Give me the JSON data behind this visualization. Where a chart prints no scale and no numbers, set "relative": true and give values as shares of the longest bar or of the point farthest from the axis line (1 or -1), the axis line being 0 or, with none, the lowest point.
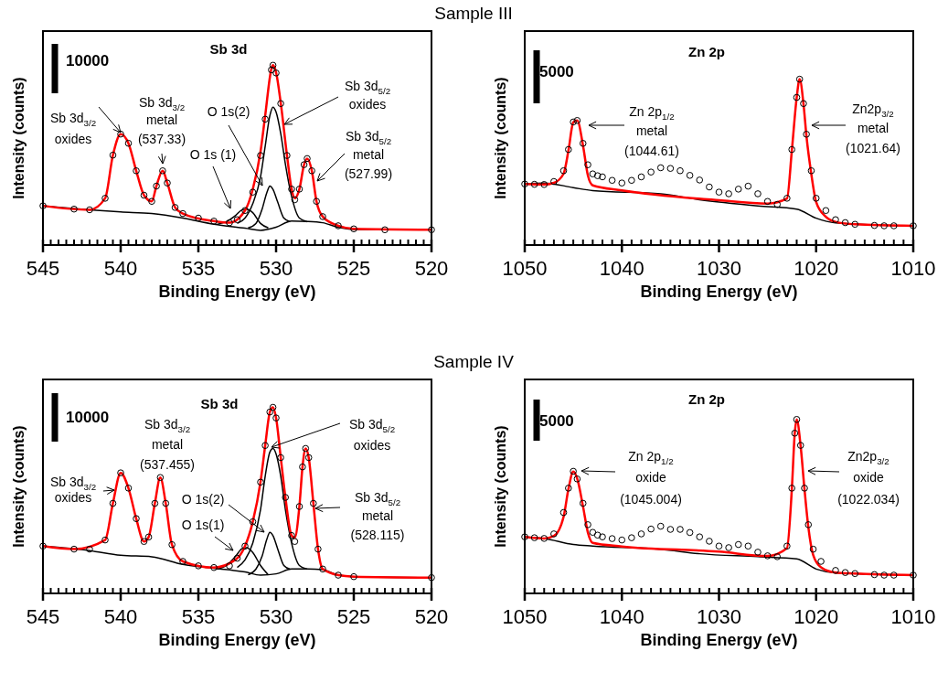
{
  "chart_data": [
    {
      "type": "scatter",
      "title": "Sb 3d",
      "subtitle": "Sample III",
      "xlabel": "Binding Energy (eV)",
      "ylabel": "Intensity (counts)",
      "relative": true,
      "xlim": [
        545,
        520
      ],
      "xticks": [
        545,
        540,
        535,
        530,
        525,
        520
      ],
      "annotations": [
        "10000",
        "Sb 3d$_{3/2}$\noxides",
        "Sb 3d$_{3/2}$\nmetal\n(537.33)",
        "O 1s (1)",
        "O 1s(2)",
        "Sb 3d$_{5/2}$\noxides",
        "Sb 3d$_{5/2}$\nmetal\n(527.99)"
      ],
      "series": [
        {
          "type": "line",
          "color": "#000000",
          "x": [
            545,
            542,
            540,
            538,
            536,
            534,
            532,
            531,
            530,
            529,
            528,
            527,
            526,
            525,
            520
          ],
          "values": [
            0.218,
            0.196,
            0.184,
            0.175,
            0.15,
            0.116,
            0.094,
            0.082,
            0.099,
            0.133,
            0.131,
            0.124,
            0.099,
            0.087,
            0.085
          ]
        },
        {
          "type": "line",
          "color": "#000000",
          "x": [
            533.8,
            533.2,
            532.6,
            532.2,
            531.9,
            531.5,
            531,
            530.5
          ],
          "values": [
            0.115,
            0.13,
            0.165,
            0.195,
            0.2,
            0.18,
            0.12,
            0.095
          ]
        },
        {
          "type": "line",
          "color": "#000000",
          "x": [
            531.8,
            531.3,
            530.9,
            530.6,
            530.4,
            530.2,
            529.9,
            529.5,
            529.1
          ],
          "values": [
            0.095,
            0.12,
            0.2,
            0.29,
            0.328,
            0.31,
            0.24,
            0.15,
            0.13
          ]
        },
        {
          "type": "line",
          "color": "#000000",
          "x": [
            532.5,
            532,
            531.5,
            531,
            530.7,
            530.4,
            530.2,
            530,
            529.7,
            529.4,
            529,
            528.5,
            528
          ],
          "values": [
            0.12,
            0.15,
            0.23,
            0.38,
            0.55,
            0.72,
            0.767,
            0.74,
            0.62,
            0.45,
            0.27,
            0.15,
            0.13
          ]
        },
        {
          "type": "line",
          "color": "#ff0000",
          "x": [
            545,
            542,
            541,
            540.5,
            540,
            539.5,
            539,
            538.5,
            538,
            537.7,
            537.3,
            537,
            536.5,
            536,
            534,
            533,
            532,
            531.5,
            531,
            530.7,
            530.3,
            530.2,
            530,
            529.7,
            529.3,
            529,
            528.8,
            528.5,
            528.2,
            528,
            527.7,
            527.4,
            527,
            526,
            525,
            520
          ],
          "values": [
            0.218,
            0.196,
            0.26,
            0.5,
            0.617,
            0.566,
            0.413,
            0.277,
            0.243,
            0.328,
            0.413,
            0.345,
            0.209,
            0.175,
            0.133,
            0.124,
            0.192,
            0.31,
            0.52,
            0.72,
            0.98,
            1.0,
            0.96,
            0.79,
            0.5,
            0.311,
            0.26,
            0.311,
            0.447,
            0.481,
            0.413,
            0.243,
            0.158,
            0.107,
            0.09,
            0.085
          ]
        },
        {
          "marker": "circle",
          "color": "#000000",
          "x": [
            545,
            543,
            542,
            541,
            540.5,
            540,
            539.5,
            539,
            538.5,
            538,
            537.7,
            537.3,
            537,
            536.5,
            536,
            535,
            534,
            533,
            532.5,
            532,
            531.5,
            531,
            530.7,
            530.3,
            530.2,
            530,
            529.7,
            529.3,
            529,
            528.8,
            528.5,
            528.2,
            528,
            527.7,
            527.4,
            527,
            526,
            525,
            523,
            520
          ],
          "values": [
            0.218,
            0.2,
            0.196,
            0.26,
            0.5,
            0.617,
            0.566,
            0.413,
            0.277,
            0.243,
            0.328,
            0.413,
            0.345,
            0.209,
            0.175,
            0.15,
            0.133,
            0.124,
            0.141,
            0.192,
            0.294,
            0.498,
            0.7,
            0.974,
            1.0,
            0.957,
            0.787,
            0.498,
            0.311,
            0.252,
            0.311,
            0.447,
            0.481,
            0.413,
            0.243,
            0.158,
            0.107,
            0.09,
            0.085,
            0.085
          ]
        }
      ]
    },
    {
      "type": "scatter",
      "title": "Zn 2p",
      "xlabel": "Binding Energy (eV)",
      "ylabel": "Intensity (counts)",
      "relative": true,
      "xlim": [
        1050,
        1010
      ],
      "xticks": [
        1050,
        1040,
        1030,
        1020,
        1010
      ],
      "annotations": [
        "5000",
        "Zn 2p$_{1/2}$\nmetal\n(1044.61)",
        "Zn2p$_{3/2}$\nmetal\n(1021.64)"
      ],
      "series": [
        {
          "type": "line",
          "color": "#000000",
          "x": [
            1050,
            1048,
            1045,
            1043,
            1036,
            1032,
            1026,
            1022,
            1020,
            1018,
            1010
          ],
          "values": [
            0.368,
            0.374,
            0.346,
            0.328,
            0.309,
            0.273,
            0.236,
            0.217,
            0.162,
            0.134,
            0.116
          ]
        },
        {
          "type": "line",
          "color": "#ff0000",
          "x": [
            1050,
            1048,
            1047,
            1046,
            1045.5,
            1045,
            1044.6,
            1044,
            1043.5,
            1043,
            1040,
            1030,
            1025,
            1023,
            1022.5,
            1022,
            1021.7,
            1021.3,
            1021,
            1020.5,
            1020,
            1019,
            1018,
            1016,
            1010
          ],
          "values": [
            0.368,
            0.365,
            0.375,
            0.43,
            0.57,
            0.74,
            0.751,
            0.6,
            0.42,
            0.36,
            0.33,
            0.27,
            0.25,
            0.28,
            0.57,
            0.89,
            1.0,
            0.85,
            0.66,
            0.43,
            0.26,
            0.17,
            0.14,
            0.125,
            0.116
          ]
        },
        {
          "marker": "circle",
          "color": "#000000",
          "x": [
            1050,
            1049,
            1048,
            1047,
            1046,
            1045.5,
            1045,
            1044.6,
            1044,
            1043.5,
            1043,
            1042.5,
            1042,
            1041,
            1040,
            1039,
            1038,
            1037,
            1036,
            1035,
            1034,
            1033,
            1032,
            1031,
            1030,
            1029,
            1028,
            1027,
            1026,
            1025,
            1024,
            1023,
            1022.5,
            1022,
            1021.7,
            1021.3,
            1021,
            1020.5,
            1020,
            1019,
            1018,
            1017,
            1016,
            1014,
            1013,
            1012,
            1010
          ],
          "values": [
            0.368,
            0.366,
            0.365,
            0.383,
            0.448,
            0.576,
            0.742,
            0.751,
            0.613,
            0.484,
            0.429,
            0.418,
            0.411,
            0.39,
            0.374,
            0.39,
            0.411,
            0.44,
            0.466,
            0.462,
            0.448,
            0.42,
            0.392,
            0.35,
            0.319,
            0.309,
            0.337,
            0.355,
            0.309,
            0.263,
            0.245,
            0.282,
            0.576,
            0.89,
            1.0,
            0.853,
            0.668,
            0.448,
            0.282,
            0.208,
            0.153,
            0.135,
            0.125,
            0.118,
            0.116,
            0.116,
            0.116
          ]
        }
      ]
    },
    {
      "type": "scatter",
      "title": "Sb 3d",
      "subtitle": "Sample IV",
      "xlabel": "Binding Energy (eV)",
      "ylabel": "Intensity (counts)",
      "relative": true,
      "xlim": [
        545,
        520
      ],
      "xticks": [
        545,
        540,
        535,
        530,
        525,
        520
      ],
      "annotations": [
        "10000",
        "Sb 3d$_{3/2}$\noxides",
        "Sb 3d$_{3/2}$\nmetal\n(537.455)",
        "O 1s(2)",
        "O 1s(1)",
        "Sb 3d$_{5/2}$\noxides",
        "Sb 3d$_{5/2}$\nmetal\n(528.115)"
      ],
      "series": [
        {
          "type": "line",
          "color": "#000000",
          "x": [
            545,
            542,
            540,
            538,
            536,
            534,
            532,
            531,
            530,
            529,
            528,
            527,
            526,
            525,
            520
          ],
          "values": [
            0.254,
            0.23,
            0.205,
            0.197,
            0.156,
            0.135,
            0.115,
            0.098,
            0.105,
            0.131,
            0.131,
            0.128,
            0.098,
            0.09,
            0.085
          ]
        },
        {
          "type": "line",
          "color": "#000000",
          "x": [
            533.8,
            533.2,
            532.6,
            532.2,
            531.9,
            531.5,
            531,
            530.5
          ],
          "values": [
            0.13,
            0.15,
            0.2,
            0.24,
            0.246,
            0.22,
            0.15,
            0.1
          ]
        },
        {
          "type": "line",
          "color": "#000000",
          "x": [
            531.8,
            531.3,
            530.9,
            530.6,
            530.4,
            530.2,
            529.9,
            529.5,
            529.1
          ],
          "values": [
            0.1,
            0.13,
            0.2,
            0.29,
            0.328,
            0.31,
            0.24,
            0.15,
            0.13
          ]
        },
        {
          "type": "line",
          "color": "#000000",
          "x": [
            532.5,
            532,
            531.5,
            531,
            530.7,
            530.4,
            530.2,
            530,
            529.7,
            529.4,
            529,
            528.5,
            528
          ],
          "values": [
            0.14,
            0.18,
            0.27,
            0.45,
            0.63,
            0.76,
            0.779,
            0.75,
            0.63,
            0.45,
            0.27,
            0.15,
            0.13
          ]
        },
        {
          "type": "line",
          "color": "#ff0000",
          "x": [
            545,
            543,
            541,
            540.5,
            540,
            539.5,
            539,
            538.5,
            538.2,
            537.8,
            537.45,
            537.1,
            536.7,
            536,
            534,
            532.5,
            532,
            531.5,
            531,
            530.7,
            530.4,
            530.2,
            530,
            529.7,
            529.4,
            529,
            528.8,
            528.5,
            528.3,
            528.1,
            527.9,
            527.6,
            527.3,
            527,
            526,
            525,
            520
          ],
          "values": [
            0.254,
            0.238,
            0.287,
            0.484,
            0.648,
            0.566,
            0.402,
            0.279,
            0.303,
            0.484,
            0.623,
            0.484,
            0.262,
            0.172,
            0.139,
            0.189,
            0.254,
            0.385,
            0.6,
            0.795,
            0.975,
            1.0,
            0.943,
            0.73,
            0.516,
            0.311,
            0.3,
            0.467,
            0.68,
            0.779,
            0.73,
            0.484,
            0.238,
            0.131,
            0.098,
            0.09,
            0.085
          ]
        },
        {
          "marker": "circle",
          "color": "#000000",
          "x": [
            545,
            543,
            542,
            541,
            540.5,
            540,
            539.5,
            539,
            538.5,
            538.2,
            537.8,
            537.45,
            537.1,
            536.7,
            536,
            535,
            534,
            533,
            532.5,
            532,
            531.5,
            531,
            530.7,
            530.4,
            530.2,
            530,
            529.7,
            529.4,
            529,
            528.8,
            528.5,
            528.3,
            528.1,
            527.9,
            527.6,
            527.3,
            527,
            526,
            525,
            520
          ],
          "values": [
            0.254,
            0.238,
            0.238,
            0.287,
            0.484,
            0.648,
            0.566,
            0.402,
            0.279,
            0.303,
            0.484,
            0.623,
            0.484,
            0.262,
            0.172,
            0.148,
            0.139,
            0.148,
            0.189,
            0.254,
            0.385,
            0.598,
            0.795,
            0.975,
            1.0,
            0.943,
            0.73,
            0.516,
            0.311,
            0.279,
            0.467,
            0.68,
            0.779,
            0.73,
            0.484,
            0.238,
            0.131,
            0.098,
            0.09,
            0.085
          ]
        }
      ]
    },
    {
      "type": "scatter",
      "title": "Zn 2p",
      "xlabel": "Binding Energy (eV)",
      "ylabel": "Intensity (counts)",
      "relative": true,
      "xlim": [
        1050,
        1010
      ],
      "xticks": [
        1050,
        1040,
        1030,
        1020,
        1010
      ],
      "annotations": [
        "5000",
        "Zn 2p$_{1/2}$\noxide\n(1045.004)",
        "Zn2p$_{3/2}$\noxide\n(1022.034)"
      ],
      "series": [
        {
          "type": "line",
          "color": "#000000",
          "x": [
            1050,
            1048,
            1045,
            1043,
            1036,
            1032,
            1026,
            1022,
            1020,
            1018,
            1010
          ],
          "values": [
            0.325,
            0.316,
            0.281,
            0.272,
            0.254,
            0.228,
            0.211,
            0.198,
            0.14,
            0.118,
            0.105
          ]
        },
        {
          "type": "line",
          "color": "#ff0000",
          "x": [
            1050,
            1048,
            1047,
            1046,
            1045.5,
            1045,
            1044.6,
            1044,
            1043.5,
            1043,
            1040,
            1030,
            1025,
            1023,
            1022.5,
            1022.2,
            1022,
            1021.6,
            1021.2,
            1020.8,
            1020.3,
            1019.5,
            1018,
            1016,
            1010
          ],
          "values": [
            0.325,
            0.316,
            0.33,
            0.44,
            0.6,
            0.7,
            0.66,
            0.5,
            0.35,
            0.29,
            0.27,
            0.24,
            0.215,
            0.26,
            0.6,
            0.92,
            1.0,
            0.85,
            0.6,
            0.38,
            0.22,
            0.15,
            0.12,
            0.114,
            0.105
          ]
        },
        {
          "marker": "circle",
          "color": "#000000",
          "x": [
            1050,
            1049,
            1048,
            1047,
            1046,
            1045.5,
            1045,
            1044.6,
            1044,
            1043.5,
            1043,
            1042.5,
            1042,
            1041,
            1040,
            1039,
            1038,
            1037,
            1036,
            1035,
            1034,
            1033,
            1032,
            1031,
            1030,
            1029,
            1028,
            1027,
            1026,
            1025,
            1024,
            1023,
            1022.5,
            1022.2,
            1022,
            1021.6,
            1021.2,
            1020.8,
            1020.3,
            1019.5,
            1018,
            1017,
            1016,
            1014,
            1013,
            1012,
            1010
          ],
          "values": [
            0.325,
            0.32,
            0.316,
            0.342,
            0.465,
            0.605,
            0.702,
            0.658,
            0.518,
            0.395,
            0.351,
            0.335,
            0.325,
            0.315,
            0.307,
            0.32,
            0.342,
            0.37,
            0.386,
            0.368,
            0.368,
            0.35,
            0.325,
            0.3,
            0.272,
            0.263,
            0.281,
            0.272,
            0.237,
            0.216,
            0.211,
            0.272,
            0.605,
            0.921,
            1.0,
            0.851,
            0.605,
            0.395,
            0.254,
            0.184,
            0.132,
            0.12,
            0.114,
            0.108,
            0.105,
            0.105,
            0.105
          ]
        }
      ]
    }
  ]
}
